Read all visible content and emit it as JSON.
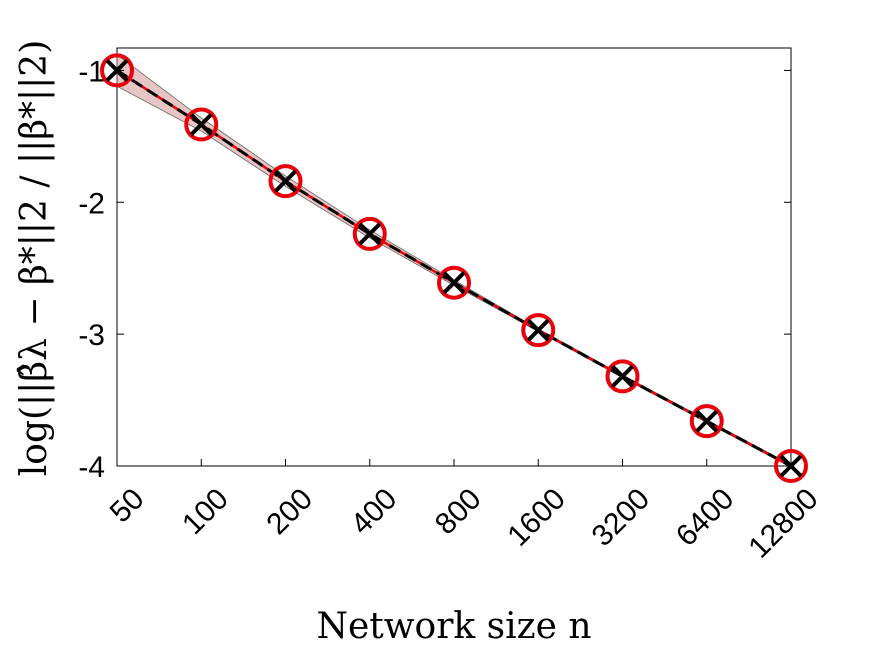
{
  "chart_data": {
    "type": "line",
    "xlabel": "Network size n",
    "ylabel": "log(||β̂λ − β*||2 / ||β*||2)",
    "x": [
      "50",
      "100",
      "200",
      "400",
      "800",
      "1600",
      "3200",
      "6400",
      "12800"
    ],
    "yticks": [
      "-1",
      "-2",
      "-3",
      "-4"
    ],
    "ylim": [
      -4,
      -0.83
    ],
    "grid": false,
    "series": [
      {
        "marker": "circle",
        "color": "#e8000b",
        "line": "solid",
        "values": [
          -1.0,
          -1.41,
          -1.84,
          -2.24,
          -2.61,
          -2.97,
          -3.32,
          -3.66,
          -4.0
        ]
      },
      {
        "marker": "x",
        "color": "#000000",
        "line": "dashed",
        "values": [
          -1.0,
          -1.41,
          -1.84,
          -2.24,
          -2.61,
          -2.97,
          -3.32,
          -3.66,
          -4.0
        ]
      }
    ],
    "band": {
      "color": "#b04040",
      "upper": [
        -0.88,
        -1.36,
        -1.8,
        -2.21,
        -2.59,
        -2.96,
        -3.31,
        -3.65,
        -3.99
      ],
      "lower": [
        -1.12,
        -1.46,
        -1.88,
        -2.27,
        -2.63,
        -2.98,
        -3.33,
        -3.67,
        -4.01
      ]
    }
  }
}
